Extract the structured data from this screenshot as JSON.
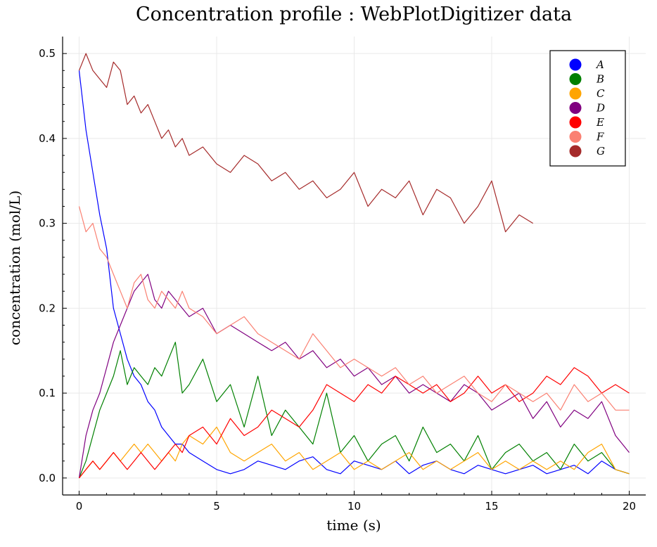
{
  "chart_data": {
    "type": "line",
    "title": "Concentration profile : WebPlotDigitizer data",
    "xlabel": "time (s)",
    "ylabel": "concentration (mol/L)",
    "xlim": [
      -0.6,
      20.6
    ],
    "ylim": [
      -0.02,
      0.52
    ],
    "xticks": [
      0,
      5,
      10,
      15,
      20
    ],
    "yticks": [
      0.0,
      0.1,
      0.2,
      0.3,
      0.4,
      0.5
    ],
    "xtick_labels": [
      "0",
      "5",
      "10",
      "15",
      "20"
    ],
    "ytick_labels": [
      "0.0",
      "0.1",
      "0.2",
      "0.3",
      "0.4",
      "0.5"
    ],
    "grid": true,
    "legend_position": "top-right",
    "series": [
      {
        "name": "A",
        "color": "#0000ff",
        "x": [
          0,
          0.25,
          0.5,
          0.75,
          1.0,
          1.25,
          1.5,
          1.75,
          2.0,
          2.25,
          2.5,
          2.75,
          3.0,
          3.25,
          3.5,
          3.75,
          4.0,
          4.5,
          5.0,
          5.5,
          6.0,
          6.5,
          7.0,
          7.5,
          8.0,
          8.5,
          9.0,
          9.5,
          10.0,
          10.5,
          11.0,
          11.5,
          12.0,
          12.5,
          13.0,
          13.5,
          14.0,
          14.5,
          15.0,
          15.5,
          16.0,
          16.5,
          17.0,
          17.5,
          18.0,
          18.5,
          19.0,
          19.5,
          20.0
        ],
        "y": [
          0.48,
          0.41,
          0.36,
          0.31,
          0.27,
          0.2,
          0.17,
          0.14,
          0.12,
          0.11,
          0.09,
          0.08,
          0.06,
          0.05,
          0.04,
          0.04,
          0.03,
          0.02,
          0.01,
          0.005,
          0.01,
          0.02,
          0.015,
          0.01,
          0.02,
          0.025,
          0.01,
          0.005,
          0.02,
          0.015,
          0.01,
          0.02,
          0.005,
          0.015,
          0.02,
          0.01,
          0.005,
          0.015,
          0.01,
          0.005,
          0.01,
          0.015,
          0.005,
          0.01,
          0.015,
          0.005,
          0.02,
          0.01,
          0.005
        ]
      },
      {
        "name": "B",
        "color": "#008000",
        "x": [
          0,
          0.25,
          0.5,
          0.75,
          1.0,
          1.25,
          1.5,
          1.75,
          2.0,
          2.25,
          2.5,
          2.75,
          3.0,
          3.25,
          3.5,
          3.75,
          4.0,
          4.5,
          5.0,
          5.5,
          6.0,
          6.5,
          7.0,
          7.5,
          8.0,
          8.5,
          9.0,
          9.5,
          10.0,
          10.5,
          11.0,
          11.5,
          12.0,
          12.5,
          13.0,
          13.5,
          14.0,
          14.5,
          15.0,
          15.5,
          16.0,
          16.5,
          17.0,
          17.5,
          18.0,
          18.5,
          19.0,
          19.5,
          20.0
        ],
        "y": [
          0.0,
          0.02,
          0.05,
          0.08,
          0.1,
          0.12,
          0.15,
          0.11,
          0.13,
          0.12,
          0.11,
          0.13,
          0.12,
          0.14,
          0.16,
          0.1,
          0.11,
          0.14,
          0.09,
          0.11,
          0.06,
          0.12,
          0.05,
          0.08,
          0.06,
          0.04,
          0.1,
          0.03,
          0.05,
          0.02,
          0.04,
          0.05,
          0.02,
          0.06,
          0.03,
          0.04,
          0.02,
          0.05,
          0.01,
          0.03,
          0.04,
          0.02,
          0.03,
          0.01,
          0.04,
          0.02,
          0.03,
          0.01,
          0.005
        ]
      },
      {
        "name": "C",
        "color": "#ffa500",
        "x": [
          0,
          0.25,
          0.5,
          0.75,
          1.0,
          1.25,
          1.5,
          1.75,
          2.0,
          2.25,
          2.5,
          2.75,
          3.0,
          3.25,
          3.5,
          3.75,
          4.0,
          4.5,
          5.0,
          5.5,
          6.0,
          6.5,
          7.0,
          7.5,
          8.0,
          8.5,
          9.0,
          9.5,
          10.0,
          10.5,
          11.0,
          11.5,
          12.0,
          12.5,
          13.0,
          13.5,
          14.0,
          14.5,
          15.0,
          15.5,
          16.0,
          16.5,
          17.0,
          17.5,
          18.0,
          18.5,
          19.0,
          19.5,
          20.0
        ],
        "y": [
          0.0,
          0.01,
          0.02,
          0.01,
          0.02,
          0.03,
          0.02,
          0.03,
          0.04,
          0.03,
          0.04,
          0.03,
          0.02,
          0.03,
          0.02,
          0.04,
          0.05,
          0.04,
          0.06,
          0.03,
          0.02,
          0.03,
          0.04,
          0.02,
          0.03,
          0.01,
          0.02,
          0.03,
          0.01,
          0.02,
          0.01,
          0.02,
          0.03,
          0.01,
          0.02,
          0.01,
          0.02,
          0.03,
          0.01,
          0.02,
          0.01,
          0.02,
          0.01,
          0.02,
          0.01,
          0.03,
          0.04,
          0.01,
          0.005
        ]
      },
      {
        "name": "D",
        "color": "#800080",
        "x": [
          0,
          0.25,
          0.5,
          0.75,
          1.0,
          1.25,
          1.5,
          1.75,
          2.0,
          2.25,
          2.5,
          2.75,
          3.0,
          3.25,
          3.5,
          3.75,
          4.0,
          4.5,
          5.0,
          5.5,
          6.0,
          6.5,
          7.0,
          7.5,
          8.0,
          8.5,
          9.0,
          9.5,
          10.0,
          10.5,
          11.0,
          11.5,
          12.0,
          12.5,
          13.0,
          13.5,
          14.0,
          14.5,
          15.0,
          15.5,
          16.0,
          16.5,
          17.0,
          17.5,
          18.0,
          18.5,
          19.0,
          19.5,
          20.0
        ],
        "y": [
          0.0,
          0.05,
          0.08,
          0.1,
          0.13,
          0.16,
          0.18,
          0.2,
          0.22,
          0.23,
          0.24,
          0.21,
          0.2,
          0.22,
          0.21,
          0.2,
          0.19,
          0.2,
          0.17,
          0.18,
          0.17,
          0.16,
          0.15,
          0.16,
          0.14,
          0.15,
          0.13,
          0.14,
          0.12,
          0.13,
          0.11,
          0.12,
          0.1,
          0.11,
          0.1,
          0.09,
          0.11,
          0.1,
          0.08,
          0.09,
          0.1,
          0.07,
          0.09,
          0.06,
          0.08,
          0.07,
          0.09,
          0.05,
          0.03
        ]
      },
      {
        "name": "E",
        "color": "#ff0000",
        "x": [
          0,
          0.25,
          0.5,
          0.75,
          1.0,
          1.25,
          1.5,
          1.75,
          2.0,
          2.25,
          2.5,
          2.75,
          3.0,
          3.25,
          3.5,
          3.75,
          4.0,
          4.5,
          5.0,
          5.5,
          6.0,
          6.5,
          7.0,
          7.5,
          8.0,
          8.5,
          9.0,
          9.5,
          10.0,
          10.5,
          11.0,
          11.5,
          12.0,
          12.5,
          13.0,
          13.5,
          14.0,
          14.5,
          15.0,
          15.5,
          16.0,
          16.5,
          17.0,
          17.5,
          18.0,
          18.5,
          19.0,
          19.5,
          20.0
        ],
        "y": [
          0.0,
          0.01,
          0.02,
          0.01,
          0.02,
          0.03,
          0.02,
          0.01,
          0.02,
          0.03,
          0.02,
          0.01,
          0.02,
          0.03,
          0.04,
          0.03,
          0.05,
          0.06,
          0.04,
          0.07,
          0.05,
          0.06,
          0.08,
          0.07,
          0.06,
          0.08,
          0.11,
          0.1,
          0.09,
          0.11,
          0.1,
          0.12,
          0.11,
          0.1,
          0.11,
          0.09,
          0.1,
          0.12,
          0.1,
          0.11,
          0.09,
          0.1,
          0.12,
          0.11,
          0.13,
          0.12,
          0.1,
          0.11,
          0.1
        ]
      },
      {
        "name": "F",
        "color": "#fa8072",
        "x": [
          0,
          0.25,
          0.5,
          0.75,
          1.0,
          1.25,
          1.5,
          1.75,
          2.0,
          2.25,
          2.5,
          2.75,
          3.0,
          3.25,
          3.5,
          3.75,
          4.0,
          4.5,
          5.0,
          5.5,
          6.0,
          6.5,
          7.0,
          7.5,
          8.0,
          8.5,
          9.0,
          9.5,
          10.0,
          10.5,
          11.0,
          11.5,
          12.0,
          12.5,
          13.0,
          13.5,
          14.0,
          14.5,
          15.0,
          15.5,
          16.0,
          16.5,
          17.0,
          17.5,
          18.0,
          18.5,
          19.0,
          19.5,
          20.0
        ],
        "y": [
          0.32,
          0.29,
          0.3,
          0.27,
          0.26,
          0.24,
          0.22,
          0.2,
          0.23,
          0.24,
          0.21,
          0.2,
          0.22,
          0.21,
          0.2,
          0.22,
          0.2,
          0.19,
          0.17,
          0.18,
          0.19,
          0.17,
          0.16,
          0.15,
          0.14,
          0.17,
          0.15,
          0.13,
          0.14,
          0.13,
          0.12,
          0.13,
          0.11,
          0.12,
          0.1,
          0.11,
          0.12,
          0.1,
          0.09,
          0.11,
          0.1,
          0.09,
          0.1,
          0.08,
          0.11,
          0.09,
          0.1,
          0.08,
          0.08
        ]
      },
      {
        "name": "G",
        "color": "#a52a2a",
        "x": [
          0,
          0.25,
          0.5,
          0.75,
          1.0,
          1.25,
          1.5,
          1.75,
          2.0,
          2.25,
          2.5,
          2.75,
          3.0,
          3.25,
          3.5,
          3.75,
          4.0,
          4.5,
          5.0,
          5.5,
          6.0,
          6.5,
          7.0,
          7.5,
          8.0,
          8.5,
          9.0,
          9.5,
          10.0,
          10.5,
          11.0,
          11.5,
          12.0,
          12.5,
          13.0,
          13.5,
          14.0,
          14.5,
          15.0,
          15.5,
          16.0,
          16.5
        ],
        "y": [
          0.48,
          0.5,
          0.48,
          0.47,
          0.46,
          0.49,
          0.48,
          0.44,
          0.45,
          0.43,
          0.44,
          0.42,
          0.4,
          0.41,
          0.39,
          0.4,
          0.38,
          0.39,
          0.37,
          0.36,
          0.38,
          0.37,
          0.35,
          0.36,
          0.34,
          0.35,
          0.33,
          0.34,
          0.36,
          0.32,
          0.34,
          0.33,
          0.35,
          0.31,
          0.34,
          0.33,
          0.3,
          0.32,
          0.35,
          0.29,
          0.31,
          0.3
        ]
      }
    ]
  }
}
